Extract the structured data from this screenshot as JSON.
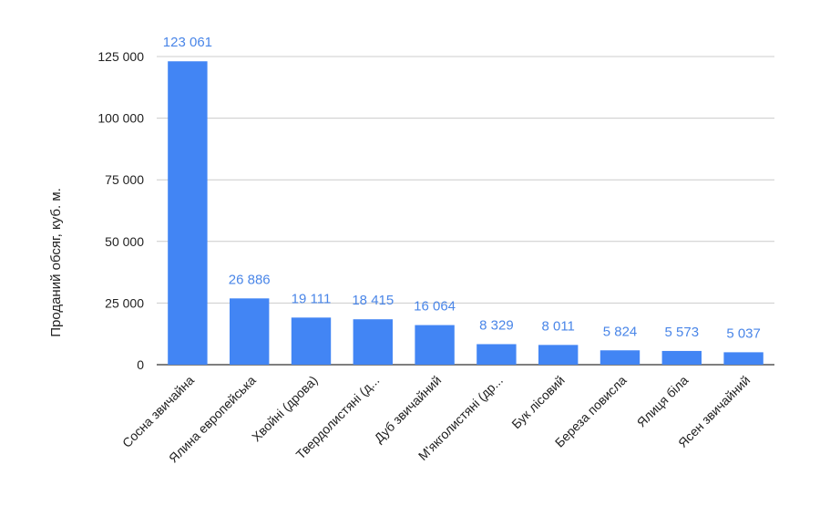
{
  "chart_data": {
    "type": "bar",
    "title": "",
    "xlabel": "",
    "ylabel": "Проданий обсяг, куб. м.",
    "ylim": [
      0,
      125000
    ],
    "yticks": [
      0,
      25000,
      50000,
      75000,
      100000,
      125000
    ],
    "ytick_labels": [
      "0",
      "25 000",
      "50 000",
      "75 000",
      "100 000",
      "125 000"
    ],
    "grid": true,
    "legend": "none",
    "bar_color": "#4285F4",
    "label_color": "#4A86E8",
    "categories": [
      "Сосна звичайна",
      "Ялина европейська",
      "Хвойні (дрова)",
      "Твердолистяні (д...",
      "Дуб звичайний",
      "М'якголистяні (др...",
      "Бук лісовий",
      "Береза повисла",
      "Ялиця біла",
      "Ясен звичайний"
    ],
    "values": [
      123061,
      26886,
      19111,
      18415,
      16064,
      8329,
      8011,
      5824,
      5573,
      5037
    ],
    "value_labels": [
      "123 061",
      "26 886",
      "19 111",
      "18 415",
      "16 064",
      "8 329",
      "8 011",
      "5 824",
      "5 573",
      "5 037"
    ]
  }
}
